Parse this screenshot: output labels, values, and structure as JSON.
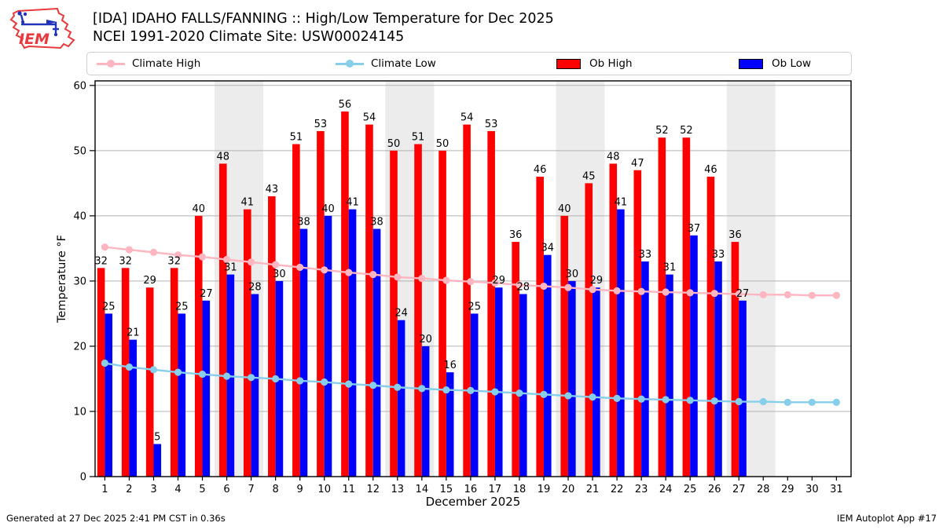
{
  "header": {
    "logo_text": "IEM",
    "title_line1": "[IDA] IDAHO FALLS/FANNING :: High/Low Temperature for Dec 2025",
    "title_line2": "NCEI 1991-2020 Climate Site: USW00024145"
  },
  "legend": {
    "items": [
      {
        "label": "Climate High",
        "type": "line",
        "color": "#ffb6c1"
      },
      {
        "label": "Climate Low",
        "type": "line",
        "color": "#87ceeb"
      },
      {
        "label": "Ob High",
        "type": "bar",
        "color": "#ff0000"
      },
      {
        "label": "Ob Low",
        "type": "bar",
        "color": "#0000ff"
      }
    ]
  },
  "footer": {
    "generated": "Generated at 27 Dec 2025 2:41 PM CST in 0.36s",
    "app": "IEM Autoplot App #17"
  },
  "chart_data": {
    "type": "bar",
    "title": "[IDA] IDAHO FALLS/FANNING :: High/Low Temperature for Dec 2025",
    "subtitle": "NCEI 1991-2020 Climate Site: USW00024145",
    "xlabel": "December 2025",
    "ylabel": "Temperature °F",
    "days": [
      1,
      2,
      3,
      4,
      5,
      6,
      7,
      8,
      9,
      10,
      11,
      12,
      13,
      14,
      15,
      16,
      17,
      18,
      19,
      20,
      21,
      22,
      23,
      24,
      25,
      26,
      27,
      28,
      29,
      30,
      31
    ],
    "series": [
      {
        "name": "Ob High",
        "type": "bar",
        "color": "#ff0000",
        "values": [
          32,
          32,
          29,
          32,
          40,
          48,
          41,
          43,
          51,
          53,
          56,
          54,
          50,
          51,
          50,
          54,
          53,
          36,
          46,
          40,
          45,
          48,
          47,
          52,
          52,
          46,
          36,
          null,
          null,
          null,
          null
        ]
      },
      {
        "name": "Ob Low",
        "type": "bar",
        "color": "#0000ff",
        "values": [
          25,
          21,
          5,
          25,
          27,
          31,
          28,
          30,
          38,
          40,
          41,
          38,
          24,
          20,
          16,
          25,
          29,
          28,
          34,
          30,
          29,
          41,
          33,
          31,
          37,
          33,
          27,
          null,
          null,
          null,
          null
        ]
      },
      {
        "name": "Climate High",
        "type": "line",
        "color": "#ffb6c1",
        "values": [
          35.2,
          34.8,
          34.4,
          34.0,
          33.7,
          33.3,
          32.9,
          32.5,
          32.1,
          31.7,
          31.3,
          31.0,
          30.6,
          30.4,
          30.1,
          29.9,
          29.7,
          29.4,
          29.2,
          29.0,
          28.7,
          28.5,
          28.4,
          28.3,
          28.2,
          28.1,
          28.0,
          27.9,
          27.9,
          27.8,
          27.8
        ]
      },
      {
        "name": "Climate Low",
        "type": "line",
        "color": "#87ceeb",
        "values": [
          17.4,
          16.8,
          16.4,
          16.0,
          15.7,
          15.4,
          15.2,
          15.0,
          14.7,
          14.5,
          14.2,
          14.0,
          13.7,
          13.5,
          13.3,
          13.2,
          13.0,
          12.8,
          12.6,
          12.4,
          12.2,
          12.0,
          11.9,
          11.8,
          11.7,
          11.6,
          11.5,
          11.5,
          11.4,
          11.4,
          11.4
        ]
      }
    ],
    "weekend_shading_day_ranges": [
      [
        5.5,
        7.5
      ],
      [
        12.5,
        14.5
      ],
      [
        19.5,
        21.5
      ],
      [
        26.5,
        28.5
      ]
    ],
    "ylim": [
      0,
      60.7
    ],
    "xlim": [
      0.6,
      31.6
    ],
    "yticks": [
      0,
      10,
      20,
      30,
      40,
      50,
      60
    ],
    "grid": "horizontal",
    "legend_position": "top",
    "colors": {
      "weekend_band": "#ececec",
      "gridline": "#b3b3b3",
      "axis": "#000000",
      "bar_label": "#000000"
    }
  }
}
